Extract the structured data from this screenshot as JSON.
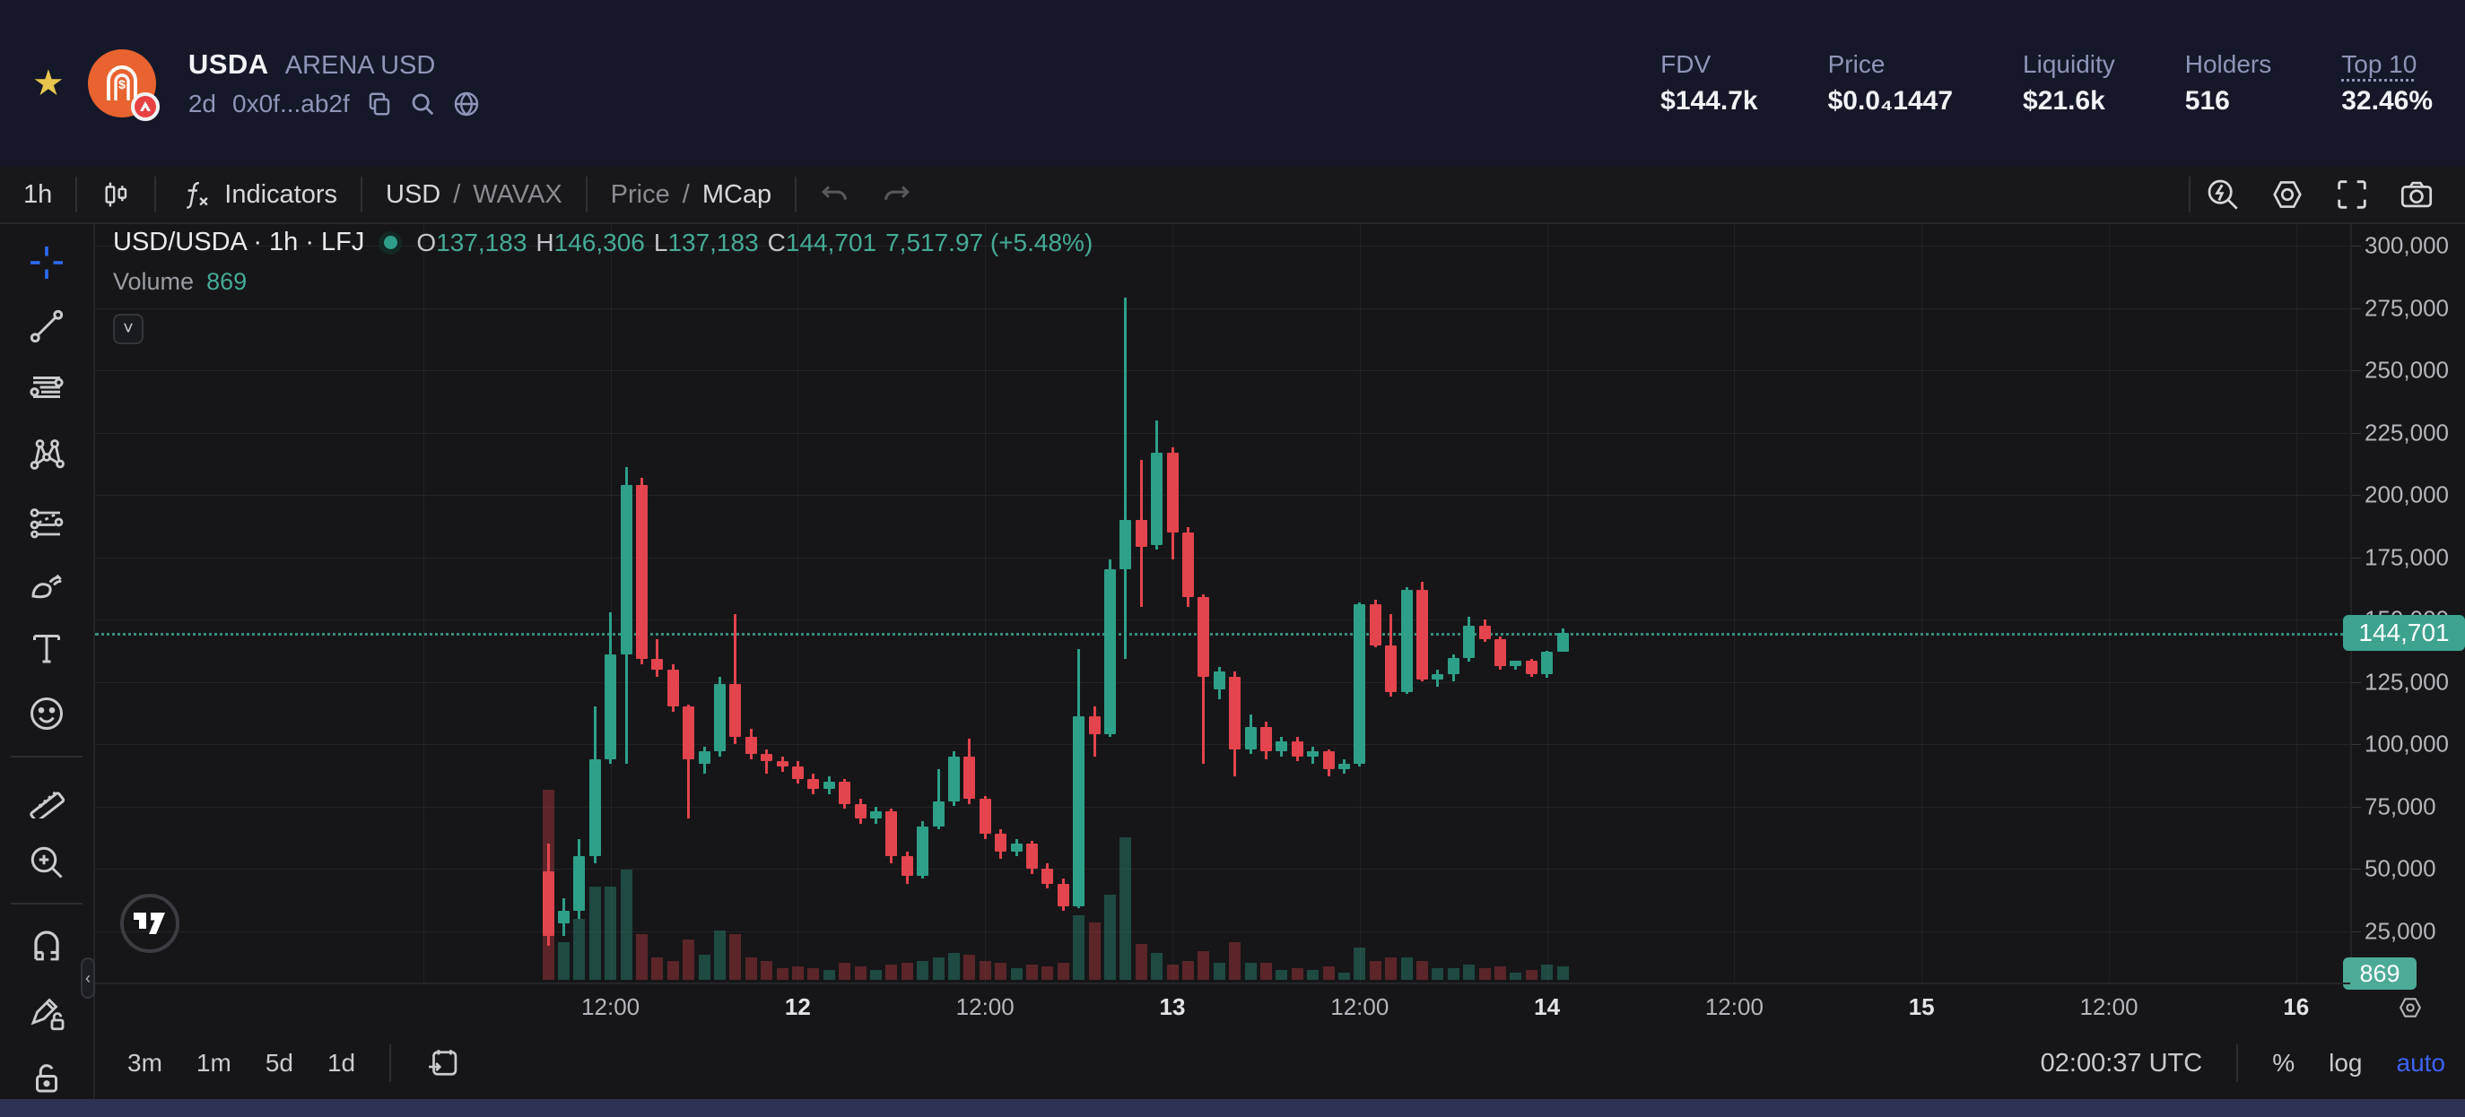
{
  "header": {
    "symbol": "USDA",
    "name": "ARENA USD",
    "age": "2d",
    "address": "0x0f...ab2f",
    "stats": [
      {
        "label": "FDV",
        "value": "$144.7k"
      },
      {
        "label": "Price",
        "value": "$0.0₄1447"
      },
      {
        "label": "Liquidity",
        "value": "$21.6k"
      },
      {
        "label": "Holders",
        "value": "516"
      },
      {
        "label": "Top 10",
        "value": "32.46%",
        "underline": true
      }
    ]
  },
  "toolbar": {
    "interval": "1h",
    "indicators_label": "Indicators",
    "pair_primary": "USD",
    "pair_separator": "/",
    "pair_secondary": "WAVAX",
    "mode_muted": "Price",
    "mode_separator": "/",
    "mode_active": "MCap"
  },
  "legend": {
    "title": "USD/USDA · 1h · LFJ",
    "o_label": "O",
    "o": "137,183",
    "h_label": "H",
    "h": "146,306",
    "l_label": "L",
    "l": "137,183",
    "c_label": "C",
    "c": "144,701",
    "change": "7,517.97 (+5.48%)",
    "volume_label": "Volume",
    "volume": "869"
  },
  "sidebar": {
    "tools": [
      {
        "name": "crosshair",
        "active": true
      },
      {
        "name": "trend-line"
      },
      {
        "name": "fib-retracement"
      },
      {
        "name": "xabcd-pattern"
      },
      {
        "name": "projection"
      },
      {
        "name": "brush"
      },
      {
        "name": "text"
      },
      {
        "name": "emoji"
      },
      {
        "type": "divider"
      },
      {
        "name": "ruler"
      },
      {
        "name": "zoom-in"
      },
      {
        "type": "divider"
      },
      {
        "name": "magnet"
      },
      {
        "name": "drawing-lock"
      },
      {
        "name": "lock"
      }
    ]
  },
  "bottom_toolbar": {
    "ranges": [
      "3m",
      "1m",
      "5d",
      "1d"
    ],
    "clock": "02:00:37 UTC",
    "percent": "%",
    "log": "log",
    "auto": "auto"
  },
  "colors": {
    "up": "#2ea088",
    "down": "#e3444d",
    "vol_up": "rgba(46,160,136,0.38)",
    "vol_down": "rgba(227,68,77,0.34)",
    "badge": "#3da38f",
    "accent_blue": "#3d63f5",
    "star": "#e7c54e",
    "logo_orange": "#e8632f",
    "avax_red": "#e84142"
  },
  "chart_data": {
    "type": "candlestick",
    "pair": "USD/USDA",
    "interval": "1h",
    "venue": "LFJ",
    "grid": true,
    "price_axis": {
      "side": "right",
      "range": [
        0,
        312000
      ],
      "ticks": [
        {
          "v": 300000,
          "label": "300,000"
        },
        {
          "v": 275000,
          "label": "275,000"
        },
        {
          "v": 250000,
          "label": "250,000"
        },
        {
          "v": 225000,
          "label": "225,000"
        },
        {
          "v": 200000,
          "label": "200,000"
        },
        {
          "v": 175000,
          "label": "175,000"
        },
        {
          "v": 150000,
          "label": "150,000"
        },
        {
          "v": 125000,
          "label": "125,000"
        },
        {
          "v": 100000,
          "label": "100,000"
        },
        {
          "v": 75000,
          "label": "75,000"
        },
        {
          "v": 50000,
          "label": "50,000"
        },
        {
          "v": 25000,
          "label": "25,000"
        }
      ],
      "last_price": 144701,
      "last_price_label": "144,701"
    },
    "volume_axis": {
      "last_volume_label": "869"
    },
    "time_axis": {
      "labels": [
        {
          "label": "12:00",
          "bold": false
        },
        {
          "label": "12",
          "bold": true
        },
        {
          "label": "12:00",
          "bold": false
        },
        {
          "label": "13",
          "bold": true
        },
        {
          "label": "12:00",
          "bold": false
        },
        {
          "label": "14",
          "bold": true
        },
        {
          "label": "12:00",
          "bold": false
        },
        {
          "label": "15",
          "bold": true
        },
        {
          "label": "12:00",
          "bold": false
        },
        {
          "label": "16",
          "bold": true
        }
      ]
    },
    "candles_note": "each candle = [time(day hh:mm UTC), open, high, low, close, relative_volume]",
    "candles": [
      [
        "11 08:00",
        49000,
        60000,
        19000,
        23000,
        1.0
      ],
      [
        "11 09:00",
        28000,
        38000,
        23000,
        33000,
        0.2
      ],
      [
        "11 10:00",
        33000,
        62000,
        30000,
        55000,
        0.32
      ],
      [
        "11 11:00",
        55000,
        115000,
        52000,
        94000,
        0.49
      ],
      [
        "11 12:00",
        94000,
        153000,
        92000,
        136000,
        0.49
      ],
      [
        "11 13:00",
        136000,
        211000,
        92000,
        204000,
        0.58
      ],
      [
        "11 14:00",
        204000,
        207000,
        132000,
        134000,
        0.24
      ],
      [
        "11 15:00",
        134000,
        142000,
        127000,
        130000,
        0.12
      ],
      [
        "11 16:00",
        130000,
        132000,
        113000,
        115000,
        0.1
      ],
      [
        "11 17:00",
        115000,
        116000,
        70000,
        94000,
        0.21
      ],
      [
        "11 18:00",
        92000,
        99000,
        88000,
        97000,
        0.13
      ],
      [
        "11 19:00",
        97000,
        127000,
        95000,
        124000,
        0.26
      ],
      [
        "11 20:00",
        124000,
        152000,
        100000,
        103000,
        0.24
      ],
      [
        "11 21:00",
        103000,
        106000,
        94000,
        96000,
        0.12
      ],
      [
        "11 22:00",
        96000,
        98000,
        88000,
        93000,
        0.1
      ],
      [
        "11 23:00",
        93000,
        95000,
        89000,
        91000,
        0.06
      ],
      [
        "12 00:00",
        91000,
        93000,
        84000,
        86000,
        0.07
      ],
      [
        "12 01:00",
        86000,
        88000,
        80000,
        82000,
        0.06
      ],
      [
        "12 02:00",
        82000,
        87000,
        80000,
        85000,
        0.05
      ],
      [
        "12 03:00",
        85000,
        86000,
        74000,
        76000,
        0.09
      ],
      [
        "12 04:00",
        76000,
        78000,
        68000,
        70000,
        0.07
      ],
      [
        "12 05:00",
        70000,
        75000,
        68000,
        73000,
        0.05
      ],
      [
        "12 06:00",
        73000,
        74000,
        52000,
        55000,
        0.08
      ],
      [
        "12 07:00",
        55000,
        57000,
        44000,
        47000,
        0.09
      ],
      [
        "12 08:00",
        47000,
        69000,
        46000,
        67000,
        0.1
      ],
      [
        "12 09:00",
        67000,
        90000,
        66000,
        77000,
        0.12
      ],
      [
        "12 10:00",
        77000,
        97000,
        75000,
        95000,
        0.14
      ],
      [
        "12 11:00",
        95000,
        102000,
        76000,
        78000,
        0.13
      ],
      [
        "12 12:00",
        78000,
        79000,
        62000,
        64000,
        0.1
      ],
      [
        "12 13:00",
        64000,
        66000,
        54000,
        57000,
        0.09
      ],
      [
        "12 14:00",
        57000,
        62000,
        55000,
        60000,
        0.06
      ],
      [
        "12 15:00",
        60000,
        61000,
        48000,
        50000,
        0.08
      ],
      [
        "12 16:00",
        50000,
        52000,
        42000,
        44000,
        0.07
      ],
      [
        "12 17:00",
        44000,
        46000,
        33000,
        35000,
        0.09
      ],
      [
        "12 18:00",
        35000,
        138000,
        34000,
        111000,
        0.34
      ],
      [
        "12 19:00",
        111000,
        115000,
        95000,
        104000,
        0.3
      ],
      [
        "12 20:00",
        104000,
        174000,
        103000,
        170000,
        0.45
      ],
      [
        "12 21:00",
        170000,
        279000,
        134000,
        190000,
        0.75
      ],
      [
        "12 22:00",
        190000,
        214000,
        155000,
        179000,
        0.19
      ],
      [
        "12 23:00",
        180000,
        230000,
        178000,
        217000,
        0.14
      ],
      [
        "13 00:00",
        217000,
        219000,
        174000,
        185000,
        0.08
      ],
      [
        "13 01:00",
        185000,
        187000,
        155000,
        159000,
        0.1
      ],
      [
        "13 02:00",
        159000,
        160000,
        92000,
        127000,
        0.15
      ],
      [
        "13 03:00",
        122000,
        131000,
        118000,
        129000,
        0.09
      ],
      [
        "13 04:00",
        127000,
        129000,
        87000,
        98000,
        0.2
      ],
      [
        "13 05:00",
        98000,
        112000,
        96000,
        107000,
        0.09
      ],
      [
        "13 06:00",
        107000,
        109000,
        94000,
        97000,
        0.09
      ],
      [
        "13 07:00",
        97000,
        103000,
        95000,
        101000,
        0.05
      ],
      [
        "13 08:00",
        101000,
        103000,
        93000,
        95000,
        0.06
      ],
      [
        "13 09:00",
        95000,
        99000,
        92000,
        97000,
        0.05
      ],
      [
        "13 10:00",
        97000,
        98000,
        87000,
        90000,
        0.07
      ],
      [
        "13 11:00",
        90000,
        94000,
        88000,
        92000,
        0.04
      ],
      [
        "13 12:00",
        92000,
        157000,
        91000,
        156000,
        0.17
      ],
      [
        "13 13:00",
        156000,
        158000,
        139000,
        139500,
        0.1
      ],
      [
        "13 14:00",
        139500,
        152000,
        119000,
        121000,
        0.12
      ],
      [
        "13 15:00",
        121000,
        163000,
        120000,
        162000,
        0.12
      ],
      [
        "13 16:00",
        162000,
        165000,
        125000,
        126000,
        0.1
      ],
      [
        "13 17:00",
        126000,
        130000,
        123000,
        128000,
        0.06
      ],
      [
        "13 18:00",
        128000,
        136000,
        125000,
        134500,
        0.06
      ],
      [
        "13 19:00",
        134500,
        151000,
        133000,
        147500,
        0.08
      ],
      [
        "13 20:00",
        147500,
        150000,
        141000,
        142000,
        0.06
      ],
      [
        "13 21:00",
        142000,
        143000,
        130000,
        131300,
        0.07
      ],
      [
        "13 22:00",
        131300,
        133300,
        130000,
        133300,
        0.04
      ],
      [
        "13 23:00",
        133300,
        134000,
        127000,
        128200,
        0.05
      ],
      [
        "14 00:00",
        128200,
        137500,
        126500,
        137183,
        0.08
      ],
      [
        "14 01:00",
        137183,
        146306,
        137183,
        144701,
        0.07
      ]
    ]
  }
}
